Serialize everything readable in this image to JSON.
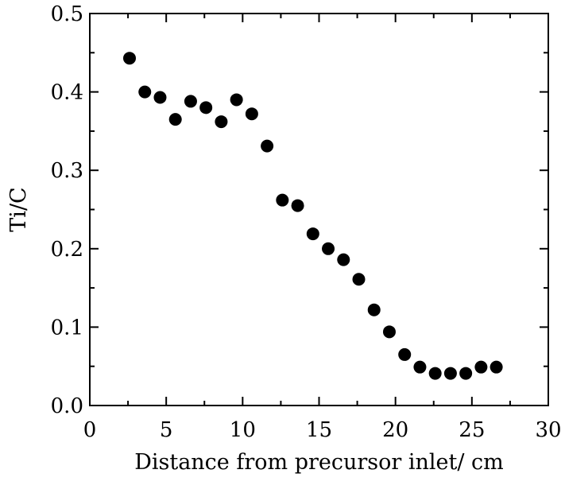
{
  "chart_data": {
    "type": "scatter",
    "title": "",
    "xlabel": "Distance from precursor inlet/ cm",
    "ylabel": "Ti/C",
    "xlim": [
      0,
      30
    ],
    "ylim": [
      0.0,
      0.5
    ],
    "xticks": [
      "0",
      "5",
      "10",
      "15",
      "20",
      "25",
      "30"
    ],
    "yticks": [
      "0.0",
      "0.1",
      "0.2",
      "0.3",
      "0.4",
      "0.5"
    ],
    "grid": false,
    "legend": "none",
    "marker_color": "#000000",
    "series": [
      {
        "x": [
          2.6,
          3.6,
          4.6,
          5.6,
          6.6,
          7.6,
          8.6,
          9.6,
          10.6,
          11.6,
          12.6,
          13.6,
          14.6,
          15.6,
          16.6,
          17.6,
          18.6,
          19.6,
          20.6,
          21.6,
          22.6,
          23.6,
          24.6,
          25.6,
          26.6
        ],
        "y": [
          0.443,
          0.4,
          0.393,
          0.365,
          0.388,
          0.38,
          0.362,
          0.39,
          0.372,
          0.331,
          0.262,
          0.255,
          0.219,
          0.2,
          0.186,
          0.161,
          0.122,
          0.094,
          0.065,
          0.049,
          0.041,
          0.041,
          0.041,
          0.049,
          0.049
        ]
      }
    ]
  }
}
